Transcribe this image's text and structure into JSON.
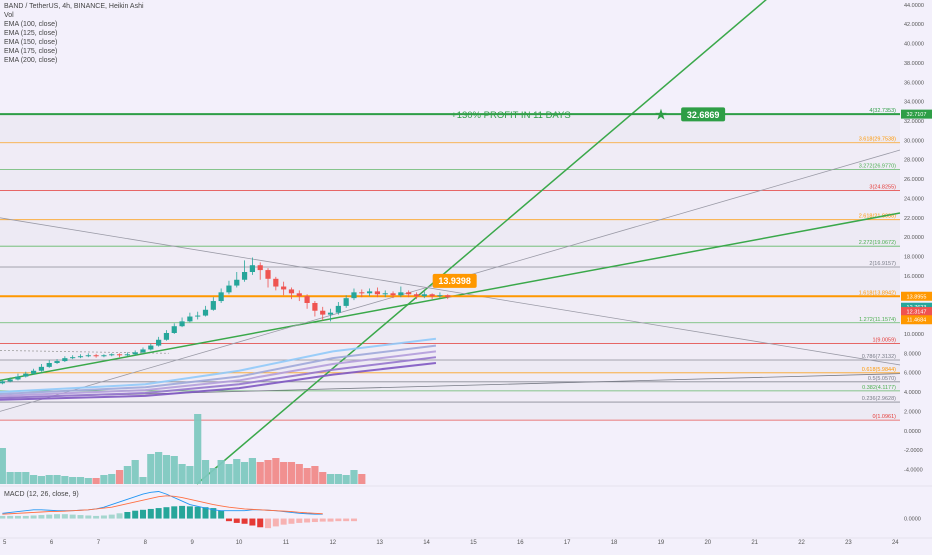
{
  "header": {
    "symbol_line": "BAND / TetherUS, 4h, BINANCE, Heikin Ashi",
    "vol": "Vol",
    "emas": [
      "EMA (100, close)",
      "EMA (125, close)",
      "EMA (150, close)",
      "EMA (175, close)",
      "EMA (200, close)"
    ]
  },
  "macd_label": "MACD (12, 26, close, 9)",
  "annotations": {
    "profit_text": "+130% PROFIT IN 11 DAYS",
    "target_box": "32.6869",
    "entry_box": "13.9398"
  },
  "colors": {
    "bg": "#f3f0fb",
    "up": "#26a69a",
    "down": "#ef5350",
    "trend_green": "#3aa84a",
    "target_green": "#2e9e46",
    "orange": "#ff9800",
    "fib_green": "#4caf50",
    "fib_red": "#e53935",
    "fib_grey": "#787b86",
    "ema_1": "#90caf9",
    "ema_2": "#9fa8da",
    "ema_3": "#b39ddb",
    "ema_4": "#9575cd",
    "ema_5": "#7e57c2",
    "macd_line": "#2196f3",
    "signal_line": "#ff7043"
  },
  "chart_data": {
    "type": "candlestick",
    "price_axis": {
      "ylim": [
        -5.5,
        44.5
      ],
      "ticks": [
        "44.0000",
        "42.0000",
        "40.0000",
        "38.0000",
        "36.0000",
        "34.0000",
        "32.0000",
        "30.0000",
        "28.0000",
        "26.0000",
        "24.0000",
        "22.0000",
        "20.0000",
        "18.0000",
        "16.0000",
        "14.0000",
        "12.0000",
        "10.0000",
        "8.0000",
        "6.0000",
        "4.0000",
        "2.0000",
        "0.0000",
        "-2.0000",
        "-4.0000"
      ],
      "price_labels": [
        {
          "text": "32.7107",
          "value": 32.7107,
          "color": "#2e9e46"
        },
        {
          "text": "13.8955",
          "value": 13.8955,
          "color": "#ff9800"
        },
        {
          "text": "12.7623",
          "value": 12.7623,
          "color": "#26a69a"
        },
        {
          "text": "12.3147",
          "value": 12.3147,
          "color": "#ef5350"
        },
        {
          "text": "11.4684",
          "value": 11.4684,
          "color": "#ff9800"
        }
      ]
    },
    "x_axis": {
      "ticks": [
        "5",
        "6",
        "7",
        "8",
        "9",
        "10",
        "11",
        "12",
        "13",
        "14",
        "15",
        "16",
        "17",
        "18",
        "19",
        "20",
        "21",
        "22",
        "23",
        "24"
      ],
      "tick_values": [
        5,
        6,
        7,
        8,
        9,
        10,
        11,
        12,
        13,
        14,
        15,
        16,
        17,
        18,
        19,
        20,
        21,
        22,
        23,
        24
      ],
      "range": [
        4.9,
        24.1
      ]
    },
    "fib_levels": [
      {
        "label": "4(32.7353)",
        "value": 32.7353,
        "color": "#2e9e46"
      },
      {
        "label": "3.618(29.7538)",
        "value": 29.7538,
        "color": "#ff9800"
      },
      {
        "label": "3.272(26.9770)",
        "value": 26.977,
        "color": "#4caf50"
      },
      {
        "label": "3(24.8255)",
        "value": 24.8255,
        "color": "#e53935"
      },
      {
        "label": "2.618(21.8038)",
        "value": 21.8038,
        "color": "#ff9800"
      },
      {
        "label": "2.272(19.0672)",
        "value": 19.0672,
        "color": "#4caf50"
      },
      {
        "label": "2(16.9157)",
        "value": 16.9157,
        "color": "#787b86"
      },
      {
        "label": "1.618(13.8942)",
        "value": 13.8942,
        "color": "#ff9800"
      },
      {
        "label": "1.272(11.1574)",
        "value": 11.1574,
        "color": "#4caf50"
      },
      {
        "label": "1(9.0059)",
        "value": 9.0059,
        "color": "#e53935"
      },
      {
        "label": "0.786(7.3132)",
        "value": 7.3132,
        "color": "#787b86"
      },
      {
        "label": "0.618(5.9844)",
        "value": 5.9844,
        "color": "#ff9800"
      },
      {
        "label": "0.5(5.0570)",
        "value": 5.057,
        "color": "#787b86"
      },
      {
        "label": "0.382(4.1177)",
        "value": 4.1177,
        "color": "#4caf50"
      },
      {
        "label": "0.236(2.9628)",
        "value": 2.9628,
        "color": "#787b86"
      },
      {
        "label": "0(1.0961)",
        "value": 1.0961,
        "color": "#e53935"
      }
    ],
    "candles_x_start": 4.95,
    "candles_x_step": 0.1667,
    "candles": [
      {
        "o": 4.9,
        "c": 5.1,
        "h": 5.3,
        "l": 4.8
      },
      {
        "o": 5.1,
        "c": 5.3,
        "h": 5.5,
        "l": 5.0
      },
      {
        "o": 5.3,
        "c": 5.6,
        "h": 5.9,
        "l": 5.2
      },
      {
        "o": 5.6,
        "c": 5.9,
        "h": 6.1,
        "l": 5.5
      },
      {
        "o": 5.9,
        "c": 6.2,
        "h": 6.4,
        "l": 5.8
      },
      {
        "o": 6.2,
        "c": 6.6,
        "h": 6.9,
        "l": 6.1
      },
      {
        "o": 6.6,
        "c": 7.0,
        "h": 7.3,
        "l": 6.5
      },
      {
        "o": 7.0,
        "c": 7.2,
        "h": 7.4,
        "l": 6.9
      },
      {
        "o": 7.2,
        "c": 7.5,
        "h": 7.7,
        "l": 7.1
      },
      {
        "o": 7.5,
        "c": 7.6,
        "h": 7.8,
        "l": 7.4
      },
      {
        "o": 7.6,
        "c": 7.7,
        "h": 7.9,
        "l": 7.5
      },
      {
        "o": 7.7,
        "c": 7.8,
        "h": 8.0,
        "l": 7.6
      },
      {
        "o": 7.8,
        "c": 7.7,
        "h": 7.95,
        "l": 7.55
      },
      {
        "o": 7.7,
        "c": 7.8,
        "h": 7.9,
        "l": 7.6
      },
      {
        "o": 7.8,
        "c": 7.9,
        "h": 8.0,
        "l": 7.7
      },
      {
        "o": 7.9,
        "c": 7.8,
        "h": 8.0,
        "l": 7.6
      },
      {
        "o": 7.8,
        "c": 7.9,
        "h": 8.1,
        "l": 7.7
      },
      {
        "o": 7.9,
        "c": 8.1,
        "h": 8.3,
        "l": 7.8
      },
      {
        "o": 8.1,
        "c": 8.4,
        "h": 8.6,
        "l": 8.0
      },
      {
        "o": 8.4,
        "c": 8.8,
        "h": 9.0,
        "l": 8.3
      },
      {
        "o": 8.8,
        "c": 9.4,
        "h": 9.7,
        "l": 8.7
      },
      {
        "o": 9.4,
        "c": 10.1,
        "h": 10.4,
        "l": 9.3
      },
      {
        "o": 10.1,
        "c": 10.8,
        "h": 11.1,
        "l": 10.0
      },
      {
        "o": 10.8,
        "c": 11.3,
        "h": 11.7,
        "l": 10.7
      },
      {
        "o": 11.3,
        "c": 11.8,
        "h": 12.2,
        "l": 11.2
      },
      {
        "o": 11.8,
        "c": 11.9,
        "h": 12.3,
        "l": 11.5
      },
      {
        "o": 11.9,
        "c": 12.5,
        "h": 12.9,
        "l": 11.8
      },
      {
        "o": 12.5,
        "c": 13.4,
        "h": 13.8,
        "l": 12.4
      },
      {
        "o": 13.4,
        "c": 14.3,
        "h": 14.7,
        "l": 13.2
      },
      {
        "o": 14.3,
        "c": 15.0,
        "h": 15.5,
        "l": 14.1
      },
      {
        "o": 15.0,
        "c": 15.6,
        "h": 16.4,
        "l": 14.8
      },
      {
        "o": 15.6,
        "c": 16.4,
        "h": 17.6,
        "l": 15.4
      },
      {
        "o": 16.4,
        "c": 17.1,
        "h": 17.9,
        "l": 16.1
      },
      {
        "o": 17.1,
        "c": 16.6,
        "h": 17.4,
        "l": 15.6
      },
      {
        "o": 16.6,
        "c": 15.7,
        "h": 16.8,
        "l": 14.8
      },
      {
        "o": 15.7,
        "c": 14.9,
        "h": 15.9,
        "l": 14.5
      },
      {
        "o": 14.9,
        "c": 14.6,
        "h": 15.4,
        "l": 14.0
      },
      {
        "o": 14.6,
        "c": 14.2,
        "h": 14.8,
        "l": 13.6
      },
      {
        "o": 14.2,
        "c": 13.9,
        "h": 14.5,
        "l": 13.4
      },
      {
        "o": 13.9,
        "c": 13.2,
        "h": 14.1,
        "l": 12.6
      },
      {
        "o": 13.2,
        "c": 12.4,
        "h": 13.4,
        "l": 11.8
      },
      {
        "o": 12.4,
        "c": 12.0,
        "h": 12.8,
        "l": 11.4
      },
      {
        "o": 12.0,
        "c": 12.2,
        "h": 12.6,
        "l": 11.3
      },
      {
        "o": 12.2,
        "c": 12.9,
        "h": 13.3,
        "l": 12.0
      },
      {
        "o": 12.9,
        "c": 13.7,
        "h": 14.0,
        "l": 12.7
      },
      {
        "o": 13.7,
        "c": 14.3,
        "h": 14.7,
        "l": 13.5
      },
      {
        "o": 14.3,
        "c": 14.2,
        "h": 14.6,
        "l": 13.8
      },
      {
        "o": 14.2,
        "c": 14.4,
        "h": 14.7,
        "l": 13.9
      },
      {
        "o": 14.4,
        "c": 14.1,
        "h": 14.8,
        "l": 13.8
      },
      {
        "o": 14.1,
        "c": 14.2,
        "h": 14.5,
        "l": 13.8
      },
      {
        "o": 14.2,
        "c": 14.0,
        "h": 14.4,
        "l": 13.7
      },
      {
        "o": 14.0,
        "c": 14.3,
        "h": 14.9,
        "l": 13.8
      },
      {
        "o": 14.3,
        "c": 14.1,
        "h": 14.5,
        "l": 13.8
      },
      {
        "o": 14.1,
        "c": 13.9,
        "h": 14.3,
        "l": 13.6
      },
      {
        "o": 13.9,
        "c": 14.1,
        "h": 14.4,
        "l": 13.7
      },
      {
        "o": 14.1,
        "c": 13.9,
        "h": 14.2,
        "l": 13.6
      },
      {
        "o": 13.9,
        "c": 14.0,
        "h": 14.3,
        "l": 13.7
      },
      {
        "o": 14.0,
        "c": 13.8,
        "h": 14.1,
        "l": 13.6
      }
    ],
    "volume": [
      36,
      12,
      12,
      12,
      9,
      8,
      9,
      9,
      8,
      7,
      7,
      6,
      6,
      9,
      10,
      14,
      18,
      24,
      7,
      30,
      32,
      29,
      28,
      20,
      18,
      70,
      24,
      16,
      24,
      20,
      25,
      22,
      26,
      22,
      24,
      26,
      22,
      22,
      20,
      16,
      18,
      12,
      10,
      10,
      9,
      14,
      10
    ],
    "macd": {
      "x_start": 4.95,
      "x_step": 0.1667,
      "histogram": [
        0.3,
        0.3,
        0.3,
        0.3,
        0.35,
        0.4,
        0.45,
        0.5,
        0.5,
        0.45,
        0.4,
        0.35,
        0.3,
        0.35,
        0.45,
        0.6,
        0.75,
        0.9,
        1.0,
        1.1,
        1.2,
        1.3,
        1.4,
        1.45,
        1.4,
        1.35,
        1.3,
        1.2,
        0.9,
        -0.3,
        -0.5,
        -0.6,
        -0.8,
        -1.0,
        -1.1,
        -0.9,
        -0.7,
        -0.6,
        -0.5,
        -0.45,
        -0.4,
        -0.35,
        -0.35,
        -0.3,
        -0.3,
        -0.3
      ],
      "macd_line": [
        0.6,
        0.7,
        0.8,
        0.9,
        1.0,
        1.0,
        0.95,
        0.9,
        0.9,
        0.9,
        0.95,
        1.0,
        1.1,
        1.3,
        1.6,
        1.9,
        2.2,
        2.5,
        2.8,
        3.0,
        3.1,
        2.8,
        2.4,
        2.0,
        1.6,
        1.4,
        1.2,
        1.0,
        0.9,
        0.9,
        0.9,
        0.9,
        1.0,
        1.0,
        0.95,
        0.9,
        0.8,
        0.7,
        0.6,
        0.55,
        0.5,
        0.5
      ],
      "signal_line": [
        0.5,
        0.55,
        0.6,
        0.65,
        0.7,
        0.75,
        0.8,
        0.82,
        0.85,
        0.9,
        0.95,
        1.0,
        1.1,
        1.2,
        1.3,
        1.5,
        1.7,
        1.9,
        2.1,
        2.3,
        2.5,
        2.6,
        2.55,
        2.4,
        2.2,
        2.0,
        1.8,
        1.6,
        1.45,
        1.3,
        1.2,
        1.1,
        1.05,
        1.0,
        0.95,
        0.9,
        0.85,
        0.8,
        0.72,
        0.65,
        0.6,
        0.55
      ],
      "ticks": [
        "0.0000"
      ],
      "ylim": [
        -2,
        3.5
      ]
    },
    "trend_lines": [
      {
        "name": "ascending-support",
        "color": "#3aa84a",
        "points": [
          [
            4.9,
            5.2
          ],
          [
            24.1,
            22.5
          ]
        ]
      },
      {
        "name": "target-projection",
        "color": "#3aa84a",
        "points": [
          [
            9.1,
            -5.5
          ],
          [
            21.6,
            46
          ]
        ]
      },
      {
        "name": "descending-resistance",
        "color": "#9a9aa6",
        "points": [
          [
            4.9,
            22.0
          ],
          [
            24.1,
            6.8
          ]
        ]
      },
      {
        "name": "rising-channel",
        "color": "#9a9aa6",
        "points": [
          [
            4.9,
            2.0
          ],
          [
            24.1,
            29.0
          ]
        ]
      },
      {
        "name": "flat-channel",
        "color": "#787b86",
        "points": [
          [
            4.9,
            3.4
          ],
          [
            24.1,
            5.9
          ]
        ]
      }
    ],
    "entry_value": 13.9398,
    "target_value": 32.6869,
    "resistance_value": 32.7107,
    "entry_x": 14.6,
    "target_x": 19.9,
    "emas": [
      {
        "name": "EMA (100, close)",
        "points": [
          [
            4.9,
            4.0
          ],
          [
            8.0,
            4.8
          ],
          [
            10.0,
            6.2
          ],
          [
            12.0,
            8.2
          ],
          [
            14.2,
            9.5
          ]
        ]
      },
      {
        "name": "EMA (125, close)",
        "points": [
          [
            4.9,
            3.8
          ],
          [
            8.0,
            4.5
          ],
          [
            10.0,
            5.6
          ],
          [
            12.0,
            7.5
          ],
          [
            14.2,
            8.8
          ]
        ]
      },
      {
        "name": "EMA (150, close)",
        "points": [
          [
            4.9,
            3.6
          ],
          [
            8.0,
            4.2
          ],
          [
            10.0,
            5.2
          ],
          [
            12.0,
            6.9
          ],
          [
            14.2,
            8.2
          ]
        ]
      },
      {
        "name": "EMA (175, close)",
        "points": [
          [
            4.9,
            3.4
          ],
          [
            8.0,
            3.9
          ],
          [
            10.0,
            4.8
          ],
          [
            12.0,
            6.3
          ],
          [
            14.2,
            7.6
          ]
        ]
      },
      {
        "name": "EMA (200, close)",
        "points": [
          [
            4.9,
            3.2
          ],
          [
            8.0,
            3.6
          ],
          [
            10.0,
            4.4
          ],
          [
            12.0,
            5.8
          ],
          [
            14.2,
            7.0
          ]
        ]
      }
    ]
  }
}
